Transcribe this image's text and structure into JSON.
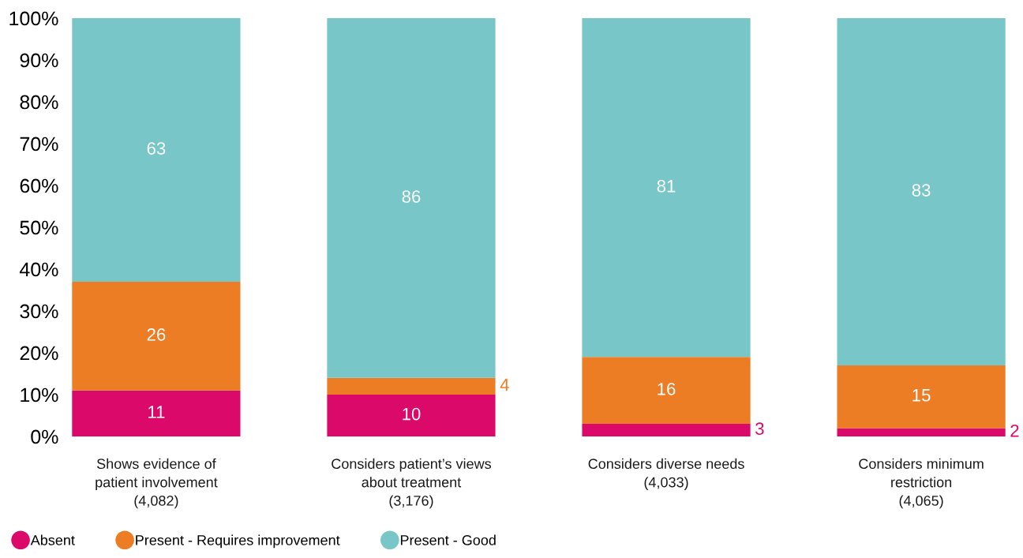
{
  "chart_data": {
    "type": "bar",
    "stacked": true,
    "categories": [
      "Shows evidence of\npatient involvement\n(4,082)",
      "Considers patient’s views\nabout treatment\n(3,176)",
      "Considers diverse needs\n(4,033)",
      "Considers minimum\nrestriction\n(4,065)"
    ],
    "series": [
      {
        "name": "Absent",
        "color": "#db0a6a",
        "values": [
          11,
          10,
          3,
          2
        ]
      },
      {
        "name": "Present - Requires improvement",
        "color": "#ed7d25",
        "values": [
          26,
          4,
          16,
          15
        ]
      },
      {
        "name": "Present - Good",
        "color": "#78c6c7",
        "values": [
          63,
          86,
          81,
          83
        ]
      }
    ],
    "ylim": [
      0,
      100
    ],
    "yticks": [
      {
        "value": 0,
        "label": "0%"
      },
      {
        "value": 10,
        "label": "10%"
      },
      {
        "value": 20,
        "label": "20%"
      },
      {
        "value": 30,
        "label": "30%"
      },
      {
        "value": 40,
        "label": "40%"
      },
      {
        "value": 50,
        "label": "50%"
      },
      {
        "value": 60,
        "label": "60%"
      },
      {
        "value": 70,
        "label": "70%"
      },
      {
        "value": 80,
        "label": "80%"
      },
      {
        "value": 90,
        "label": "90%"
      },
      {
        "value": 100,
        "label": "100%"
      }
    ],
    "data_labels": true,
    "legend": "bottom left",
    "grid": false
  }
}
